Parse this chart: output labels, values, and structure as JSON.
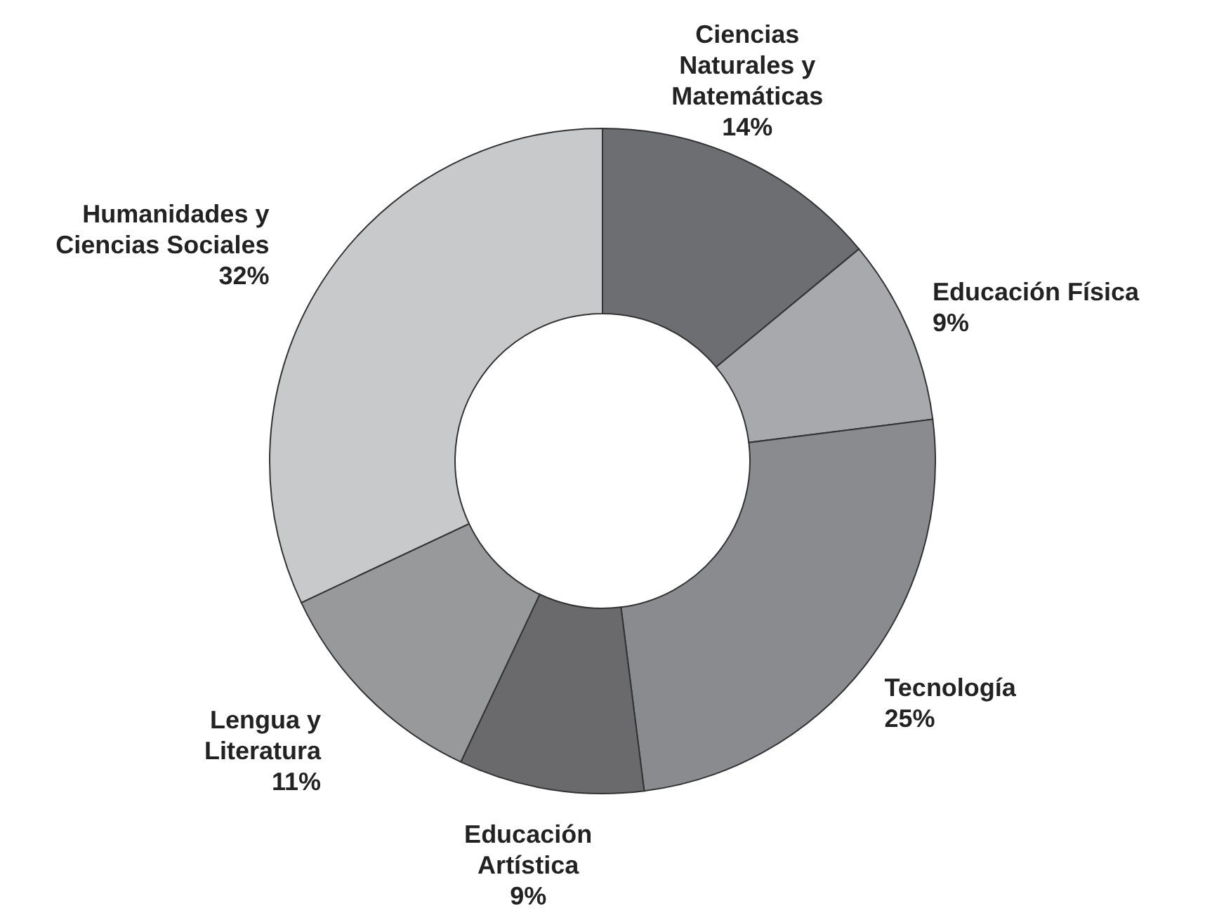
{
  "chart_data": {
    "type": "donut",
    "categories": [
      "Ciencias Naturales y Matemáticas",
      "Educación Física",
      "Tecnología",
      "Educación Artística",
      "Lengua y Literatura",
      "Humanidades y Ciencias Sociales"
    ],
    "values": [
      14,
      9,
      25,
      9,
      11,
      32
    ],
    "colors": [
      "#6d6e71",
      "#a7a9ac",
      "#8a8b8e",
      "#6a6a6c",
      "#98999b",
      "#c8c9cb"
    ],
    "value_labels": [
      "14%",
      "9%",
      "25%",
      "9%",
      "11%",
      "32%"
    ]
  }
}
